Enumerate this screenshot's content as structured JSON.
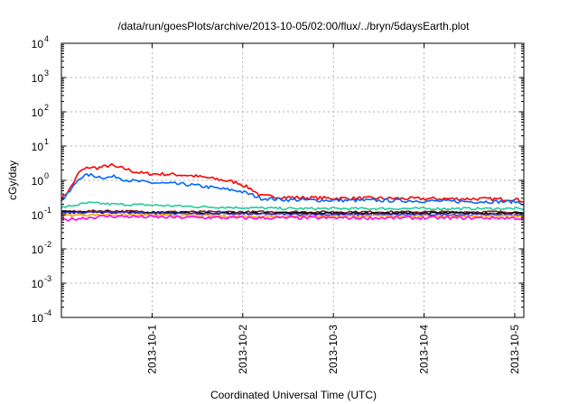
{
  "chart_data": {
    "type": "line",
    "title": "/data/run/goesPlots/archive/2013-10-05/02:00/flux/../bryn/5daysEarth.plot",
    "xlabel": "Coordinated Universal Time (UTC)",
    "ylabel": "cGy/day",
    "yscale": "log",
    "ylim": [
      0.0001,
      10000
    ],
    "xlim": [
      0,
      5.1
    ],
    "grid": true,
    "legend": "none",
    "yticks": [
      {
        "base": "10",
        "exp": "-4",
        "value": 0.0001
      },
      {
        "base": "10",
        "exp": "-3",
        "value": 0.001
      },
      {
        "base": "10",
        "exp": "-2",
        "value": 0.01
      },
      {
        "base": "10",
        "exp": "-1",
        "value": 0.1
      },
      {
        "base": "10",
        "exp": "0",
        "value": 1
      },
      {
        "base": "10",
        "exp": "1",
        "value": 10
      },
      {
        "base": "10",
        "exp": "2",
        "value": 100
      },
      {
        "base": "10",
        "exp": "3",
        "value": 1000
      },
      {
        "base": "10",
        "exp": "4",
        "value": 10000
      }
    ],
    "xticks": [
      {
        "label": "2013-10-1",
        "value": 1
      },
      {
        "label": "2013-10-2",
        "value": 2
      },
      {
        "label": "2013-10-3",
        "value": 3
      },
      {
        "label": "2013-10-4",
        "value": 4
      },
      {
        "label": "2013-10-5",
        "value": 5
      }
    ],
    "series": [
      {
        "color": "#ff0000",
        "noise": 0.05,
        "x": [
          0,
          0.1,
          0.2,
          0.3,
          0.4,
          0.5,
          0.55,
          0.6,
          0.7,
          0.8,
          0.9,
          1.0,
          1.2,
          1.4,
          1.6,
          1.8,
          1.95,
          2.1,
          2.2,
          2.5,
          3.0,
          3.5,
          4.0,
          4.5,
          5.0,
          5.1
        ],
        "values": [
          0.28,
          0.6,
          1.8,
          2.4,
          2.3,
          2.6,
          2.8,
          2.4,
          2.2,
          1.8,
          1.6,
          1.55,
          1.5,
          1.4,
          1.2,
          1.0,
          0.85,
          0.55,
          0.35,
          0.32,
          0.3,
          0.3,
          0.29,
          0.29,
          0.28,
          0.25
        ]
      },
      {
        "color": "#0066ff",
        "noise": 0.05,
        "x": [
          0,
          0.1,
          0.2,
          0.3,
          0.4,
          0.5,
          0.6,
          0.7,
          0.8,
          1.0,
          1.2,
          1.4,
          1.6,
          1.8,
          1.95,
          2.1,
          2.2,
          2.5,
          3.0,
          3.5,
          4.0,
          4.5,
          5.0,
          5.1
        ],
        "values": [
          0.25,
          0.5,
          1.2,
          1.45,
          1.3,
          1.2,
          1.3,
          1.05,
          0.95,
          0.85,
          0.8,
          0.75,
          0.65,
          0.55,
          0.5,
          0.38,
          0.3,
          0.27,
          0.26,
          0.26,
          0.25,
          0.24,
          0.24,
          0.21
        ]
      },
      {
        "color": "#22cc99",
        "noise": 0.035,
        "x": [
          0,
          0.3,
          0.6,
          1.0,
          1.5,
          2.0,
          2.5,
          3.0,
          4.0,
          5.0,
          5.1
        ],
        "values": [
          0.16,
          0.22,
          0.2,
          0.19,
          0.17,
          0.16,
          0.15,
          0.15,
          0.15,
          0.15,
          0.14
        ]
      },
      {
        "color": "#8b1a1a",
        "noise": 0.03,
        "x": [
          0,
          0.5,
          1.0,
          2.0,
          3.0,
          4.0,
          5.0,
          5.1
        ],
        "values": [
          0.12,
          0.13,
          0.12,
          0.12,
          0.12,
          0.12,
          0.12,
          0.11
        ]
      },
      {
        "color": "#000000",
        "noise": 0.03,
        "x": [
          0,
          0.5,
          1.0,
          2.0,
          3.0,
          4.0,
          5.0,
          5.1
        ],
        "values": [
          0.12,
          0.12,
          0.115,
          0.11,
          0.11,
          0.11,
          0.11,
          0.105
        ]
      },
      {
        "color": "#3333cc",
        "noise": 0.03,
        "x": [
          0,
          0.5,
          1.0,
          2.0,
          3.0,
          4.0,
          5.0,
          5.1
        ],
        "values": [
          0.11,
          0.12,
          0.11,
          0.105,
          0.1,
          0.1,
          0.1,
          0.1
        ]
      },
      {
        "color": "#ffaa00",
        "noise": 0.03,
        "x": [
          0,
          0.5,
          1.0,
          2.0,
          3.0,
          4.0,
          5.0,
          5.1
        ],
        "values": [
          0.095,
          0.1,
          0.095,
          0.09,
          0.09,
          0.09,
          0.09,
          0.088
        ]
      },
      {
        "color": "#ff00ff",
        "noise": 0.045,
        "x": [
          0,
          0.5,
          1.0,
          2.0,
          3.0,
          4.0,
          5.0,
          5.1
        ],
        "values": [
          0.07,
          0.09,
          0.085,
          0.08,
          0.08,
          0.08,
          0.08,
          0.075
        ]
      }
    ]
  }
}
